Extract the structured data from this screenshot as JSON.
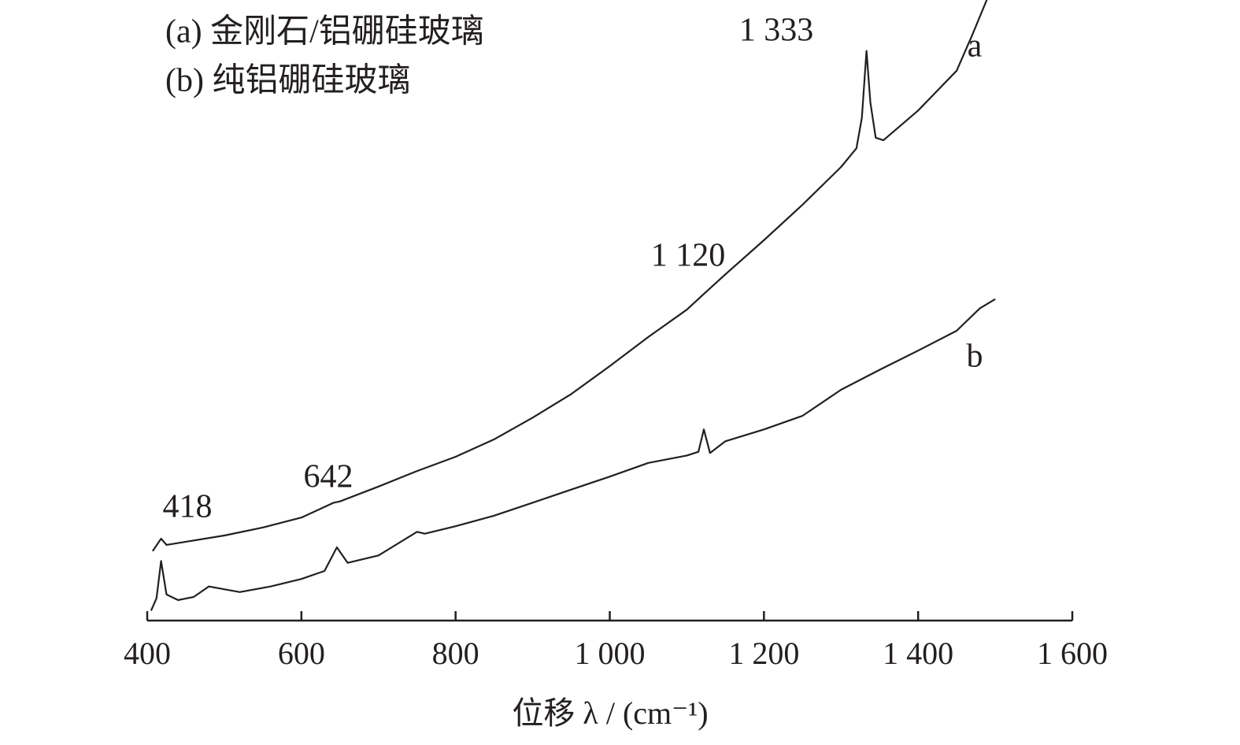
{
  "chart_data": {
    "type": "line",
    "x_label": "位移 λ / (cm⁻¹)",
    "legend": [
      "(a) 金刚石/铝硼硅玻璃",
      "(b) 纯铝硼硅玻璃"
    ],
    "xlim": [
      400,
      1600
    ],
    "ylim": [
      0,
      100
    ],
    "xticks": [
      400,
      600,
      800,
      {
        "value": 1000,
        "label": "1 000"
      },
      {
        "value": 1200,
        "label": "1 200"
      },
      {
        "value": 1400,
        "label": "1 400"
      },
      {
        "value": 1600,
        "label": "1 600"
      }
    ],
    "series": [
      {
        "name": "a",
        "color": "#231f20",
        "x": [
          407,
          418,
          425,
          450,
          500,
          550,
          600,
          642,
          650,
          700,
          750,
          800,
          850,
          900,
          950,
          1000,
          1050,
          1100,
          1120,
          1150,
          1200,
          1250,
          1300,
          1320,
          1327,
          1333,
          1338,
          1345,
          1355,
          1400,
          1450,
          1470,
          1489
        ],
        "values": [
          11.2,
          13.2,
          12.2,
          12.7,
          13.7,
          15.0,
          16.6,
          19.0,
          19.2,
          21.6,
          24.1,
          26.4,
          29.2,
          32.7,
          36.5,
          41.0,
          45.7,
          50.1,
          52.4,
          55.8,
          61.3,
          67.0,
          73.1,
          76.1,
          81.0,
          91.8,
          83.5,
          77.8,
          77.4,
          82.2,
          88.6,
          94.3,
          100
        ]
      },
      {
        "name": "b",
        "color": "#231f20",
        "x": [
          405,
          412,
          418,
          425,
          440,
          460,
          480,
          520,
          560,
          600,
          630,
          646,
          660,
          700,
          750,
          760,
          800,
          850,
          900,
          950,
          1000,
          1050,
          1100,
          1115,
          1122,
          1130,
          1150,
          1200,
          1250,
          1300,
          1350,
          1400,
          1450,
          1480,
          1500
        ],
        "values": [
          1.6,
          3.6,
          9.6,
          4.2,
          3.3,
          3.8,
          5.5,
          4.6,
          5.5,
          6.7,
          8.0,
          11.8,
          9.3,
          10.5,
          14.3,
          14.0,
          15.2,
          16.9,
          19.0,
          21.1,
          23.2,
          25.4,
          26.6,
          27.2,
          30.8,
          27.0,
          28.9,
          30.8,
          33.0,
          37.2,
          40.4,
          43.5,
          46.7,
          50.3,
          51.8
        ]
      }
    ],
    "annotations": [
      "418",
      "642",
      "1 120",
      "1 333"
    ]
  }
}
